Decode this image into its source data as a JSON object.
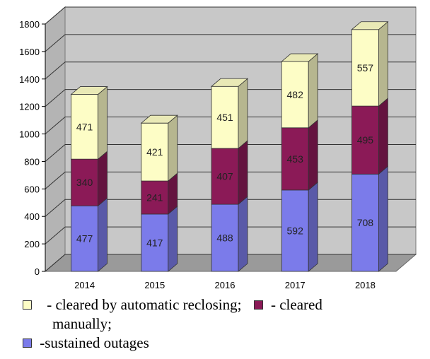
{
  "chart_data": {
    "type": "bar",
    "stacked": true,
    "categories": [
      "2014",
      "2015",
      "2016",
      "2017",
      "2018"
    ],
    "series": [
      {
        "key": "sustained",
        "values": [
          477,
          417,
          488,
          592,
          708
        ],
        "color": "#7b7bea"
      },
      {
        "key": "manual",
        "values": [
          340,
          241,
          407,
          453,
          495
        ],
        "color": "#8b1a57"
      },
      {
        "key": "auto",
        "values": [
          471,
          421,
          451,
          482,
          557
        ],
        "color": "#fdfdc6"
      }
    ],
    "ylim": [
      0,
      1800
    ],
    "yticks": [
      "0",
      "200",
      "400",
      "600",
      "800",
      "1000",
      "1200",
      "1400",
      "1600",
      "1800"
    ],
    "grid": true,
    "style": "3d"
  },
  "legend": {
    "auto_text": "- cleared by automatic reclosing;",
    "manual_text": "- cleared",
    "manual_text_cont": "manually;",
    "sustained_text": "-sustained outages"
  }
}
